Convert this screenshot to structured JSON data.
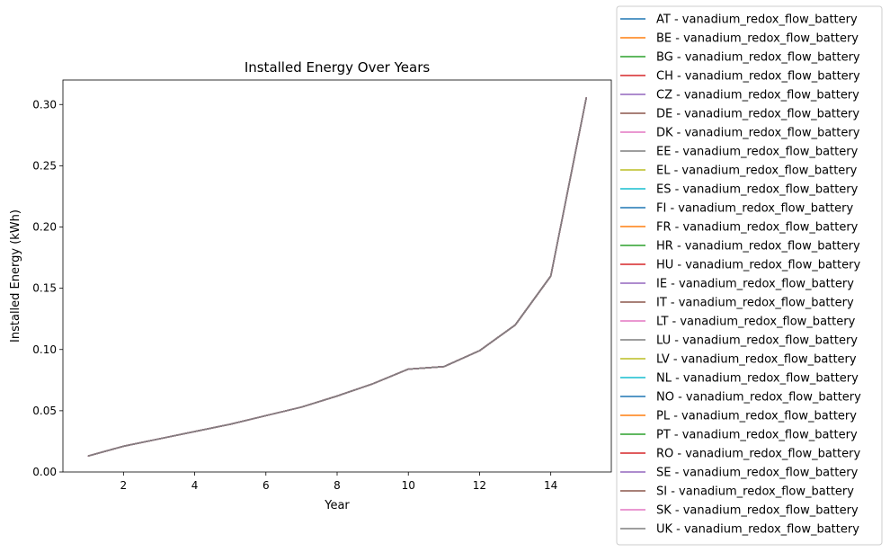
{
  "chart_data": {
    "type": "line",
    "title": "Installed Energy Over Years",
    "xlabel": "Year",
    "ylabel": "Installed Energy (kWh)",
    "xlim": [
      0.3,
      15.7
    ],
    "ylim": [
      0,
      0.32
    ],
    "xticks": [
      2,
      4,
      6,
      8,
      10,
      12,
      14
    ],
    "yticks": [
      0.0,
      0.05,
      0.1,
      0.15,
      0.2,
      0.25,
      0.3
    ],
    "ytick_labels": [
      "0.00",
      "0.05",
      "0.10",
      "0.15",
      "0.20",
      "0.25",
      "0.30"
    ],
    "grid": false,
    "legend_position": "outside-right",
    "x": [
      1,
      2,
      3,
      4,
      5,
      6,
      7,
      8,
      9,
      10,
      11,
      12,
      13,
      14,
      15
    ],
    "shared_values": [
      0.013,
      0.021,
      0.027,
      0.033,
      0.039,
      0.046,
      0.053,
      0.062,
      0.072,
      0.084,
      0.086,
      0.099,
      0.12,
      0.16,
      0.306
    ],
    "series": [
      {
        "name": "AT - vanadium_redox_flow_battery",
        "color": "#1f77b4"
      },
      {
        "name": "BE - vanadium_redox_flow_battery",
        "color": "#ff7f0e"
      },
      {
        "name": "BG - vanadium_redox_flow_battery",
        "color": "#2ca02c"
      },
      {
        "name": "CH - vanadium_redox_flow_battery",
        "color": "#d62728"
      },
      {
        "name": "CZ - vanadium_redox_flow_battery",
        "color": "#9467bd"
      },
      {
        "name": "DE - vanadium_redox_flow_battery",
        "color": "#8c564b"
      },
      {
        "name": "DK - vanadium_redox_flow_battery",
        "color": "#e377c2"
      },
      {
        "name": "EE - vanadium_redox_flow_battery",
        "color": "#7f7f7f"
      },
      {
        "name": "EL - vanadium_redox_flow_battery",
        "color": "#bcbd22"
      },
      {
        "name": "ES - vanadium_redox_flow_battery",
        "color": "#17becf"
      },
      {
        "name": "FI - vanadium_redox_flow_battery",
        "color": "#1f77b4"
      },
      {
        "name": "FR - vanadium_redox_flow_battery",
        "color": "#ff7f0e"
      },
      {
        "name": "HR - vanadium_redox_flow_battery",
        "color": "#2ca02c"
      },
      {
        "name": "HU - vanadium_redox_flow_battery",
        "color": "#d62728"
      },
      {
        "name": "IE - vanadium_redox_flow_battery",
        "color": "#9467bd"
      },
      {
        "name": "IT - vanadium_redox_flow_battery",
        "color": "#8c564b"
      },
      {
        "name": "LT - vanadium_redox_flow_battery",
        "color": "#e377c2"
      },
      {
        "name": "LU - vanadium_redox_flow_battery",
        "color": "#7f7f7f"
      },
      {
        "name": "LV - vanadium_redox_flow_battery",
        "color": "#bcbd22"
      },
      {
        "name": "NL - vanadium_redox_flow_battery",
        "color": "#17becf"
      },
      {
        "name": "NO - vanadium_redox_flow_battery",
        "color": "#1f77b4"
      },
      {
        "name": "PL - vanadium_redox_flow_battery",
        "color": "#ff7f0e"
      },
      {
        "name": "PT - vanadium_redox_flow_battery",
        "color": "#2ca02c"
      },
      {
        "name": "RO - vanadium_redox_flow_battery",
        "color": "#d62728"
      },
      {
        "name": "SE - vanadium_redox_flow_battery",
        "color": "#9467bd"
      },
      {
        "name": "SI - vanadium_redox_flow_battery",
        "color": "#8c564b"
      },
      {
        "name": "SK - vanadium_redox_flow_battery",
        "color": "#e377c2"
      },
      {
        "name": "UK - vanadium_redox_flow_battery",
        "color": "#7f7f7f"
      }
    ]
  }
}
